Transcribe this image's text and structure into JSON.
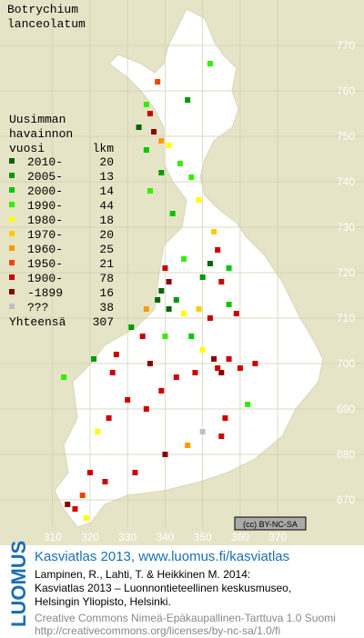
{
  "map": {
    "title": [
      "Botrychium",
      "lanceolatum"
    ],
    "legend": {
      "heading": [
        "Uusimman",
        "havainnon"
      ],
      "col_period": "vuosi",
      "col_count": "lkm",
      "items": [
        {
          "label": "2010-",
          "count": 20,
          "color": "#006400"
        },
        {
          "label": "2005-",
          "count": 13,
          "color": "#009a00"
        },
        {
          "label": "2000-",
          "count": 14,
          "color": "#00c800"
        },
        {
          "label": "1990-",
          "count": 44,
          "color": "#33ee00"
        },
        {
          "label": "1980-",
          "count": 18,
          "color": "#ffff00"
        },
        {
          "label": "1970-",
          "count": 20,
          "color": "#ffcc00"
        },
        {
          "label": "1960-",
          "count": 25,
          "color": "#ff9900"
        },
        {
          "label": "1950-",
          "count": 21,
          "color": "#ee4400"
        },
        {
          "label": "1900-",
          "count": 78,
          "color": "#cc0000"
        },
        {
          "label": "-1899",
          "count": 16,
          "color": "#880000"
        },
        {
          "label": "???",
          "count": 38,
          "color": "#c0c0c0"
        }
      ],
      "total_label": "Yhteensä",
      "total": 307
    },
    "xlim": [
      296,
      393
    ],
    "ylim": [
      664,
      780
    ],
    "xticks": [
      310,
      320,
      330,
      340,
      350,
      360,
      370
    ],
    "yticks": [
      770,
      760,
      750,
      740,
      730,
      720,
      710,
      700,
      690,
      680,
      670
    ],
    "observations": [
      {
        "x": 338,
        "y": 762,
        "period": 7
      },
      {
        "x": 335,
        "y": 757,
        "period": 3
      },
      {
        "x": 336,
        "y": 755,
        "period": 8
      },
      {
        "x": 337,
        "y": 751,
        "period": 9
      },
      {
        "x": 333,
        "y": 752,
        "period": 0
      },
      {
        "x": 339,
        "y": 749,
        "period": 6
      },
      {
        "x": 341,
        "y": 748,
        "period": 4
      },
      {
        "x": 335,
        "y": 747,
        "period": 2
      },
      {
        "x": 344,
        "y": 744,
        "period": 3
      },
      {
        "x": 347,
        "y": 741,
        "period": 3
      },
      {
        "x": 352,
        "y": 766,
        "period": 3
      },
      {
        "x": 346,
        "y": 758,
        "period": 1
      },
      {
        "x": 339,
        "y": 742,
        "period": 1
      },
      {
        "x": 336,
        "y": 738,
        "period": 3
      },
      {
        "x": 342,
        "y": 733,
        "period": 2
      },
      {
        "x": 349,
        "y": 736,
        "period": 4
      },
      {
        "x": 353,
        "y": 729,
        "period": 5
      },
      {
        "x": 354,
        "y": 725,
        "period": 8
      },
      {
        "x": 352,
        "y": 722,
        "period": 0
      },
      {
        "x": 350,
        "y": 719,
        "period": 1
      },
      {
        "x": 355,
        "y": 718,
        "period": 8
      },
      {
        "x": 357,
        "y": 721,
        "period": 2
      },
      {
        "x": 340,
        "y": 721,
        "period": 8
      },
      {
        "x": 341,
        "y": 718,
        "period": 9
      },
      {
        "x": 339,
        "y": 716,
        "period": 0
      },
      {
        "x": 338,
        "y": 714,
        "period": 0
      },
      {
        "x": 341,
        "y": 712,
        "period": 0
      },
      {
        "x": 343,
        "y": 714,
        "period": 1
      },
      {
        "x": 345,
        "y": 711,
        "period": 4
      },
      {
        "x": 335,
        "y": 712,
        "period": 6
      },
      {
        "x": 334,
        "y": 706,
        "period": 8
      },
      {
        "x": 331,
        "y": 708,
        "period": 1
      },
      {
        "x": 340,
        "y": 706,
        "period": 3
      },
      {
        "x": 353,
        "y": 701,
        "period": 9
      },
      {
        "x": 354,
        "y": 699,
        "period": 8
      },
      {
        "x": 355,
        "y": 698,
        "period": 9
      },
      {
        "x": 357,
        "y": 701,
        "period": 8
      },
      {
        "x": 350,
        "y": 703,
        "period": 4
      },
      {
        "x": 348,
        "y": 698,
        "period": 8
      },
      {
        "x": 343,
        "y": 697,
        "period": 8
      },
      {
        "x": 339,
        "y": 694,
        "period": 8
      },
      {
        "x": 335,
        "y": 690,
        "period": 8
      },
      {
        "x": 330,
        "y": 692,
        "period": 8
      },
      {
        "x": 326,
        "y": 698,
        "period": 8
      },
      {
        "x": 325,
        "y": 688,
        "period": 8
      },
      {
        "x": 322,
        "y": 685,
        "period": 4
      },
      {
        "x": 320,
        "y": 676,
        "period": 8
      },
      {
        "x": 318,
        "y": 671,
        "period": 7
      },
      {
        "x": 316,
        "y": 668,
        "period": 8
      },
      {
        "x": 314,
        "y": 669,
        "period": 9
      },
      {
        "x": 319,
        "y": 666,
        "period": 4
      },
      {
        "x": 324,
        "y": 674,
        "period": 8
      },
      {
        "x": 332,
        "y": 676,
        "period": 8
      },
      {
        "x": 340,
        "y": 680,
        "period": 9
      },
      {
        "x": 346,
        "y": 682,
        "period": 6
      },
      {
        "x": 350,
        "y": 685,
        "period": 10
      },
      {
        "x": 355,
        "y": 684,
        "period": 8
      },
      {
        "x": 356,
        "y": 688,
        "period": 8
      },
      {
        "x": 362,
        "y": 691,
        "period": 3
      },
      {
        "x": 364,
        "y": 700,
        "period": 8
      },
      {
        "x": 360,
        "y": 699,
        "period": 8
      },
      {
        "x": 313,
        "y": 697,
        "period": 3
      },
      {
        "x": 321,
        "y": 701,
        "period": 1
      },
      {
        "x": 327,
        "y": 702,
        "period": 8
      },
      {
        "x": 336,
        "y": 700,
        "period": 9
      },
      {
        "x": 347,
        "y": 706,
        "period": 2
      },
      {
        "x": 345,
        "y": 723,
        "period": 3
      },
      {
        "x": 349,
        "y": 712,
        "period": 5
      },
      {
        "x": 357,
        "y": 713,
        "period": 2
      },
      {
        "x": 352,
        "y": 710,
        "period": 8
      },
      {
        "x": 359,
        "y": 711,
        "period": 8
      }
    ],
    "license_badge": "(cc) BY-NC-SA"
  },
  "footer": {
    "brand": "LUOMUS",
    "title": "Kasviatlas 2013, www.luomus.fi/kasviatlas",
    "citation": [
      "Lampinen, R., Lahti, T. & Heikkinen M. 2014:",
      "Kasviatlas 2013 – Luonnontieteellinen keskusmuseo,",
      "Helsingin Yliopisto, Helsinki."
    ],
    "license": [
      "Creative Commons Nimeä-Epäkaupallinen-Tarttuva 1.0 Suomi",
      "http://creativecommons.org/licenses/by-nc-sa/1.0/fi"
    ]
  }
}
